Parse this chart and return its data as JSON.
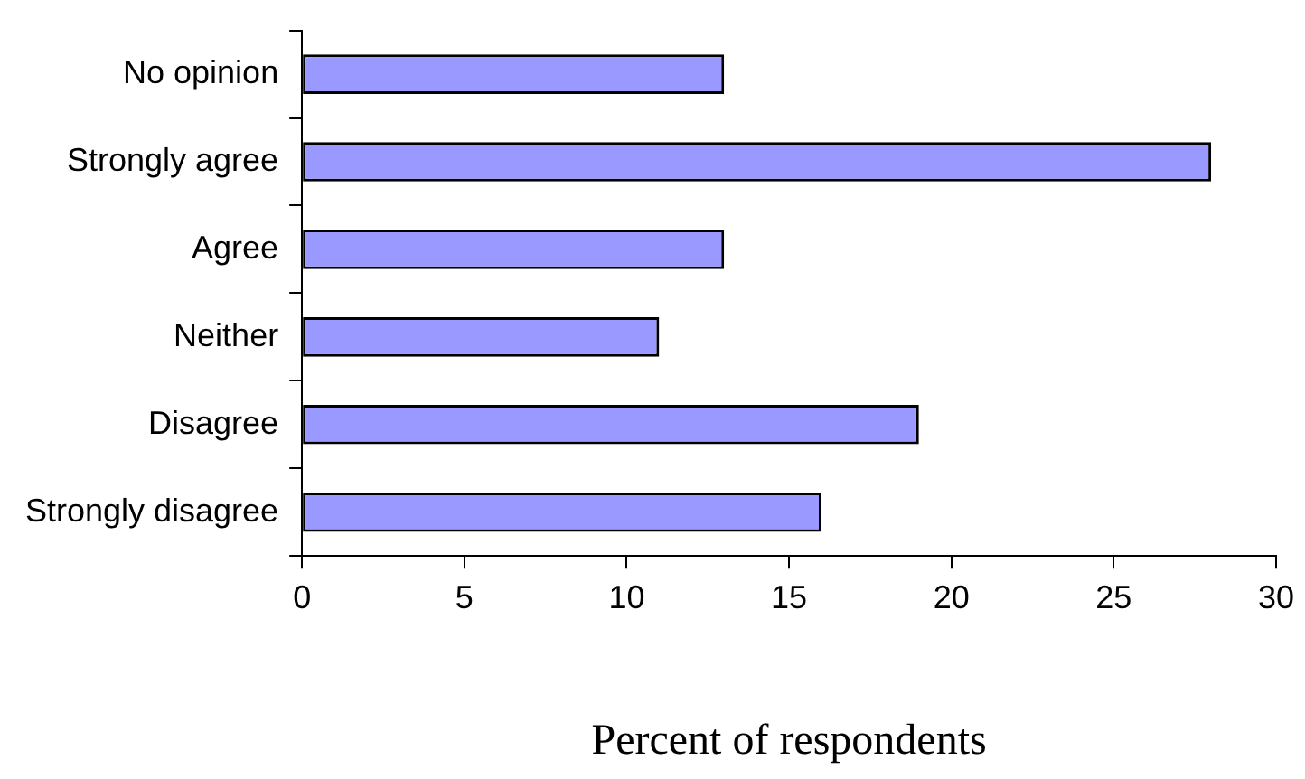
{
  "chart_data": {
    "type": "bar",
    "orientation": "horizontal",
    "xlabel": "Percent of respondents",
    "categories": [
      "No opinion",
      "Strongly agree",
      "Agree",
      "Neither",
      "Disagree",
      "Strongly disagree"
    ],
    "values": [
      13,
      28,
      13,
      11,
      19,
      16
    ],
    "color": "#9999ff",
    "xlim": [
      0,
      30
    ],
    "xticks": [
      0,
      5,
      10,
      15,
      20,
      25,
      30
    ],
    "grid": false,
    "legend": false
  }
}
